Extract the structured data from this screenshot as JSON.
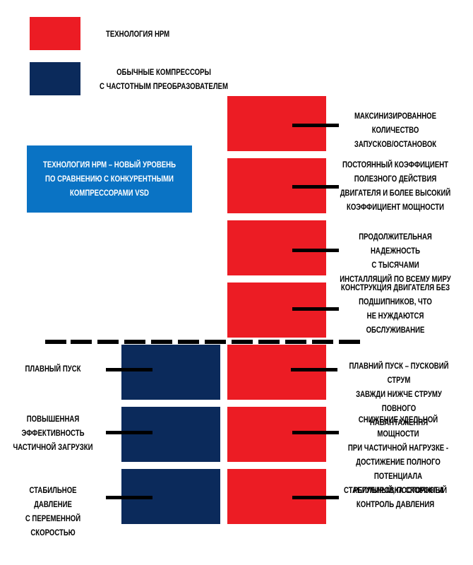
{
  "legend": {
    "hpm": {
      "label": "ТЕХНОЛОГИЯ НРМ",
      "color": "#ec1c24"
    },
    "vsd": {
      "label": "ОБЫЧНЫЕ КОМПРЕССОРЫ\nС ЧАСТОТНЫМ ПРЕОБРАЗОВАТЕЛЕМ",
      "color": "#0b2a5b"
    }
  },
  "callout": {
    "text": "ТЕХНОЛОГИЯ НРМ – НОВЫЙ УРОВЕНЬ\nПО СРАВНЕНИЮ С КОНКУРЕНТНЫМИ\nКОМПРЕССОРАМИ VSD",
    "color": "#0a73c4"
  },
  "hpm_only_features": [
    "МАКСИНИЗИРОВАННОЕ КОЛИЧЕСТВО\nЗАПУСКОВ/ОСТАНОВОК",
    "ПОСТОЯННЫЙ КОЭФФИЦИЕНТ\nПОЛЕЗНОГО ДЕЙСТВИЯ\nДВИГАТЕЛЯ И БОЛЕЕ ВЫСОКИЙ\nКОЭФФИЦИЕНТ МОЩНОСТИ",
    "ПРОДОЛЖИТЕЛЬНАЯ НАДЕЖНОСТЬ\nС ТЫСЯЧАМИ\nИНСТАЛЛЯЦИЙ ПО ВСЕМУ МИРУ",
    "КОНСТРУКЦИЯ ДВИГАТЕЛЯ БЕЗ\nПОДШИПНИКОВ, ЧТО\nНЕ НУЖДАЮТСЯ\nОБСЛУЖИВАНИЕ"
  ],
  "shared_features": [
    {
      "vsd": "ПЛАВНЫЙ ПУСК",
      "hpm": "ПЛАВНИЙ ПУСК – ПУСКОВИЙ СТРУМ\nЗАВЖДИ НИЖЧЕ СТРУМУ ПОВНОГО\nНАВАНТАЖЕННЯ"
    },
    {
      "vsd": "ПОВЫШЕННАЯ\nЭФФЕКТИВНОСТЬ\nЧАСТИЧНОЙ ЗАГРУЗКИ",
      "hpm": "СНИЖЕНИЕ УДЕЛЬНОЙ МОЩНОСТИ\nПРИ ЧАСТИЧНОЙ НАГРУЗКЕ -\nДОСТИЖЕНИЕ ПОЛНОГО ПОТЕНЦИАЛА\nРЕГУЛИРОВКА СКОРОСТИ"
    },
    {
      "vsd": "СТАБИЛЬНОЕ ДАВЛЕНИЕ\nС ПЕРЕМЕННОЙ СКОРОСТЬЮ",
      "hpm": "СТАБИЛЬНЫЙ, ПОСТОЯННЫЙ\nКОНТРОЛЬ ДАВЛЕНИЯ"
    }
  ]
}
